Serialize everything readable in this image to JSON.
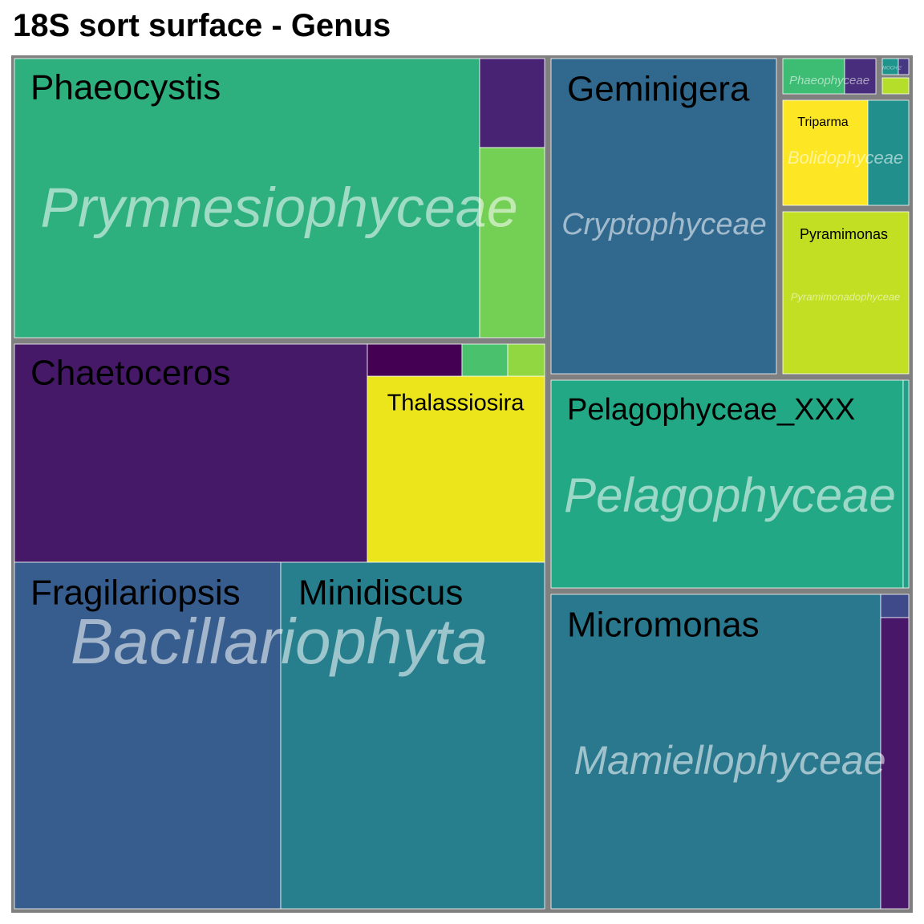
{
  "chart_data": {
    "type": "treemap",
    "title": "18S sort surface - Genus",
    "groups": [
      {
        "name": "Prymnesiophyceae",
        "genera": [
          {
            "name": "Phaeocystis",
            "color": "#2db07e"
          },
          {
            "name": "",
            "color": "#482374"
          },
          {
            "name": "",
            "color": "#74d055"
          }
        ]
      },
      {
        "name": "Bacillariophyta",
        "genera": [
          {
            "name": "Chaetoceros",
            "color": "#461868"
          },
          {
            "name": "Thalassiosira",
            "color": "#ece51b"
          },
          {
            "name": "",
            "color": "#440154"
          },
          {
            "name": "",
            "color": "#4ac16d"
          },
          {
            "name": "",
            "color": "#91d742"
          },
          {
            "name": "Fragilariopsis",
            "color": "#365d8d"
          },
          {
            "name": "Minidiscus",
            "color": "#277f8e"
          }
        ]
      },
      {
        "name": "Cryptophyceae",
        "genera": [
          {
            "name": "Geminigera",
            "color": "#31688e"
          }
        ]
      },
      {
        "name": "Phaeophyceae",
        "genera": [
          {
            "name": "",
            "color": "#3dbc74"
          },
          {
            "name": "",
            "color": "#472d7b"
          }
        ]
      },
      {
        "name": "MOCH-2",
        "genera": [
          {
            "name": "",
            "color": "#1f948c"
          },
          {
            "name": "",
            "color": "#453781"
          }
        ]
      },
      {
        "name": "",
        "genera": [
          {
            "name": "",
            "color": "#b5de2b"
          }
        ]
      },
      {
        "name": "Bolidophyceae",
        "genera": [
          {
            "name": "Triparma",
            "color": "#fde725"
          },
          {
            "name": "",
            "color": "#21908d"
          }
        ]
      },
      {
        "name": "Pyramimonadophyceae",
        "genera": [
          {
            "name": "Pyramimonas",
            "color": "#c2df23"
          }
        ]
      },
      {
        "name": "Pelagophyceae",
        "genera": [
          {
            "name": "Pelagophyceae_XXX",
            "color": "#22a884"
          },
          {
            "name": "",
            "color": "#1fa188"
          }
        ]
      },
      {
        "name": "Mamiellophyceae",
        "genera": [
          {
            "name": "Micromonas",
            "color": "#2a788e"
          },
          {
            "name": "",
            "color": "#3e4a89"
          },
          {
            "name": "",
            "color": "#481769"
          }
        ]
      }
    ]
  }
}
